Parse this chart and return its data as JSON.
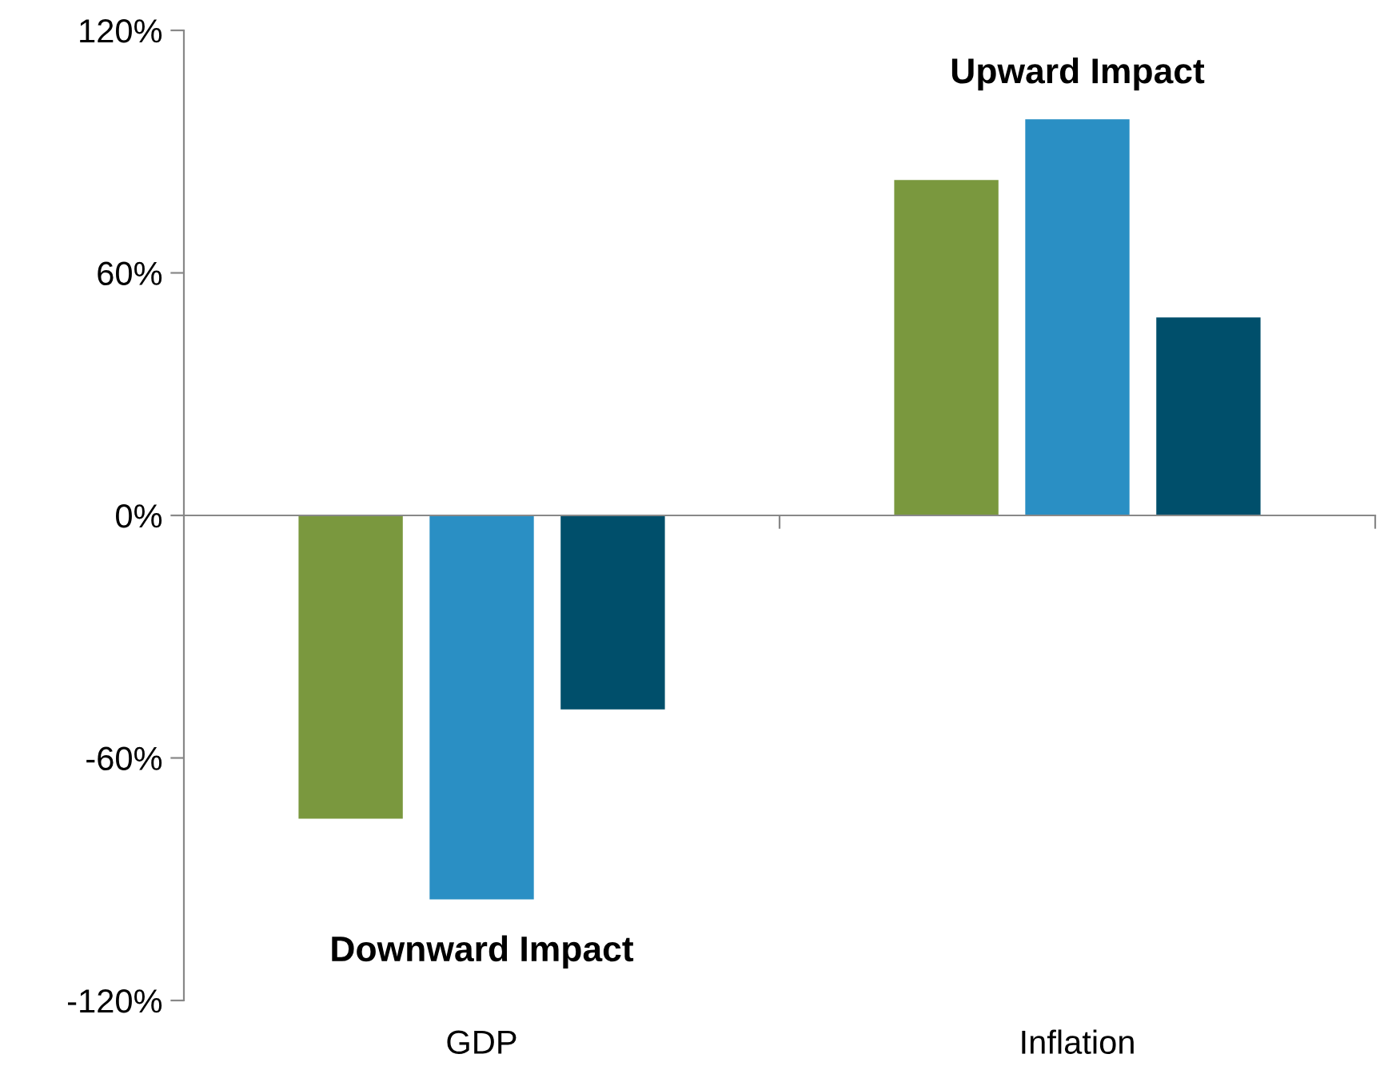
{
  "chart_data": {
    "type": "bar",
    "categories": [
      "GDP",
      "Inflation"
    ],
    "series": [
      {
        "color": "#7a983e",
        "values": [
          -75,
          83
        ]
      },
      {
        "color": "#2a8fc4",
        "values": [
          -95,
          98
        ]
      },
      {
        "color": "#004f6b",
        "values": [
          -48,
          49
        ]
      }
    ],
    "ylim": [
      -120,
      120
    ],
    "yticks": [
      {
        "value": -120,
        "label": "-120%"
      },
      {
        "value": -60,
        "label": "-60%"
      },
      {
        "value": 0,
        "label": "0%"
      },
      {
        "value": 60,
        "label": "60%"
      },
      {
        "value": 120,
        "label": "120%"
      }
    ],
    "annotations": [
      "Downward Impact",
      "Upward Impact"
    ],
    "legend": false
  }
}
